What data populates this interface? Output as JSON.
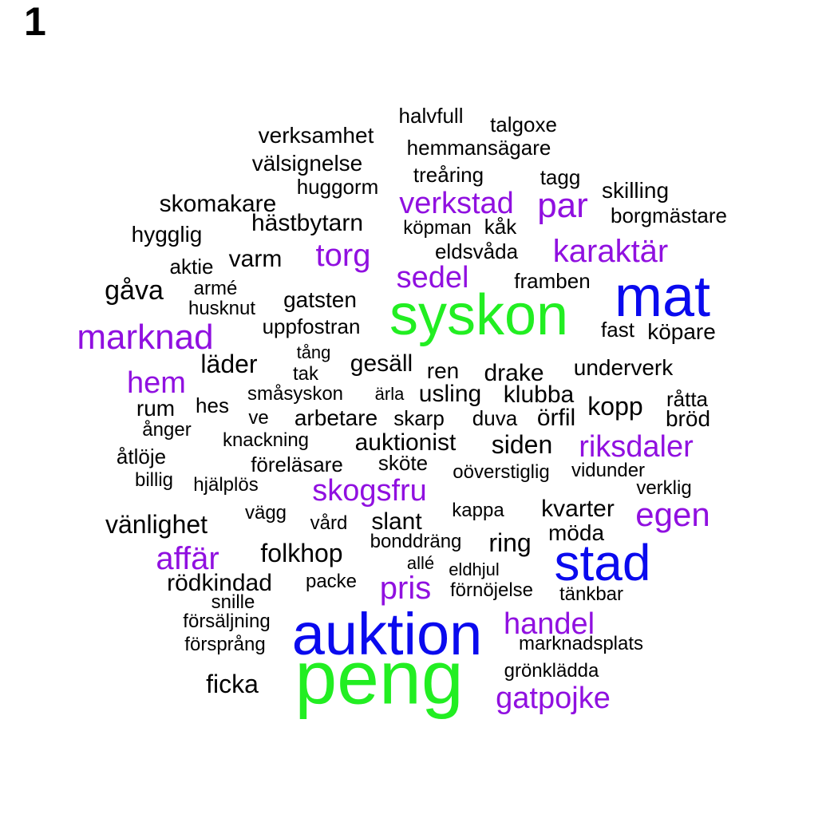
{
  "panel_label": "1",
  "colors": {
    "green": "#22ee22",
    "blue": "#0a0aee",
    "purple": "#9010e0",
    "black": "#000000"
  },
  "words": [
    {
      "text": "peng",
      "color": "green"
    },
    {
      "text": "auktion",
      "color": "blue"
    },
    {
      "text": "syskon",
      "color": "green"
    },
    {
      "text": "mat",
      "color": "blue"
    },
    {
      "text": "stad",
      "color": "blue"
    },
    {
      "text": "marknad",
      "color": "purple"
    },
    {
      "text": "par",
      "color": "purple"
    },
    {
      "text": "verkstad",
      "color": "purple"
    },
    {
      "text": "karaktär",
      "color": "purple"
    },
    {
      "text": "torg",
      "color": "purple"
    },
    {
      "text": "sedel",
      "color": "purple"
    },
    {
      "text": "hem",
      "color": "purple"
    },
    {
      "text": "riksdaler",
      "color": "purple"
    },
    {
      "text": "skogsfru",
      "color": "purple"
    },
    {
      "text": "egen",
      "color": "purple"
    },
    {
      "text": "affär",
      "color": "purple"
    },
    {
      "text": "pris",
      "color": "purple"
    },
    {
      "text": "handel",
      "color": "purple"
    },
    {
      "text": "gatpojke",
      "color": "purple"
    },
    {
      "text": "halvfull",
      "color": "black"
    },
    {
      "text": "talgoxe",
      "color": "black"
    },
    {
      "text": "verksamhet",
      "color": "black"
    },
    {
      "text": "hemmansägare",
      "color": "black"
    },
    {
      "text": "välsignelse",
      "color": "black"
    },
    {
      "text": "treåring",
      "color": "black"
    },
    {
      "text": "tagg",
      "color": "black"
    },
    {
      "text": "huggorm",
      "color": "black"
    },
    {
      "text": "skilling",
      "color": "black"
    },
    {
      "text": "skomakare",
      "color": "black"
    },
    {
      "text": "borgmästare",
      "color": "black"
    },
    {
      "text": "hästbytarn",
      "color": "black"
    },
    {
      "text": "köpman",
      "color": "black"
    },
    {
      "text": "kåk",
      "color": "black"
    },
    {
      "text": "hygglig",
      "color": "black"
    },
    {
      "text": "eldsvåda",
      "color": "black"
    },
    {
      "text": "varm",
      "color": "black"
    },
    {
      "text": "aktie",
      "color": "black"
    },
    {
      "text": "framben",
      "color": "black"
    },
    {
      "text": "gåva",
      "color": "black"
    },
    {
      "text": "armé",
      "color": "black"
    },
    {
      "text": "gatsten",
      "color": "black"
    },
    {
      "text": "husknut",
      "color": "black"
    },
    {
      "text": "uppfostran",
      "color": "black"
    },
    {
      "text": "fast",
      "color": "black"
    },
    {
      "text": "köpare",
      "color": "black"
    },
    {
      "text": "tång",
      "color": "black"
    },
    {
      "text": "läder",
      "color": "black"
    },
    {
      "text": "gesäll",
      "color": "black"
    },
    {
      "text": "tak",
      "color": "black"
    },
    {
      "text": "ren",
      "color": "black"
    },
    {
      "text": "drake",
      "color": "black"
    },
    {
      "text": "underverk",
      "color": "black"
    },
    {
      "text": "småsyskon",
      "color": "black"
    },
    {
      "text": "ärla",
      "color": "black"
    },
    {
      "text": "usling",
      "color": "black"
    },
    {
      "text": "klubba",
      "color": "black"
    },
    {
      "text": "hes",
      "color": "black"
    },
    {
      "text": "råtta",
      "color": "black"
    },
    {
      "text": "rum",
      "color": "black"
    },
    {
      "text": "kopp",
      "color": "black"
    },
    {
      "text": "ve",
      "color": "black"
    },
    {
      "text": "arbetare",
      "color": "black"
    },
    {
      "text": "skarp",
      "color": "black"
    },
    {
      "text": "duva",
      "color": "black"
    },
    {
      "text": "örfil",
      "color": "black"
    },
    {
      "text": "bröd",
      "color": "black"
    },
    {
      "text": "ånger",
      "color": "black"
    },
    {
      "text": "knackning",
      "color": "black"
    },
    {
      "text": "auktionist",
      "color": "black"
    },
    {
      "text": "siden",
      "color": "black"
    },
    {
      "text": "åtlöje",
      "color": "black"
    },
    {
      "text": "föreläsare",
      "color": "black"
    },
    {
      "text": "sköte",
      "color": "black"
    },
    {
      "text": "vidunder",
      "color": "black"
    },
    {
      "text": "oöverstiglig",
      "color": "black"
    },
    {
      "text": "billig",
      "color": "black"
    },
    {
      "text": "hjälplös",
      "color": "black"
    },
    {
      "text": "verklig",
      "color": "black"
    },
    {
      "text": "kappa",
      "color": "black"
    },
    {
      "text": "kvarter",
      "color": "black"
    },
    {
      "text": "vägg",
      "color": "black"
    },
    {
      "text": "vänlighet",
      "color": "black"
    },
    {
      "text": "vård",
      "color": "black"
    },
    {
      "text": "slant",
      "color": "black"
    },
    {
      "text": "möda",
      "color": "black"
    },
    {
      "text": "bonddräng",
      "color": "black"
    },
    {
      "text": "ring",
      "color": "black"
    },
    {
      "text": "folkhop",
      "color": "black"
    },
    {
      "text": "allé",
      "color": "black"
    },
    {
      "text": "eldhjul",
      "color": "black"
    },
    {
      "text": "rödkindad",
      "color": "black"
    },
    {
      "text": "packe",
      "color": "black"
    },
    {
      "text": "förnöjelse",
      "color": "black"
    },
    {
      "text": "tänkbar",
      "color": "black"
    },
    {
      "text": "snille",
      "color": "black"
    },
    {
      "text": "försäljning",
      "color": "black"
    },
    {
      "text": "marknadsplats",
      "color": "black"
    },
    {
      "text": "försprång",
      "color": "black"
    },
    {
      "text": "grönklädda",
      "color": "black"
    },
    {
      "text": "ficka",
      "color": "black"
    }
  ]
}
